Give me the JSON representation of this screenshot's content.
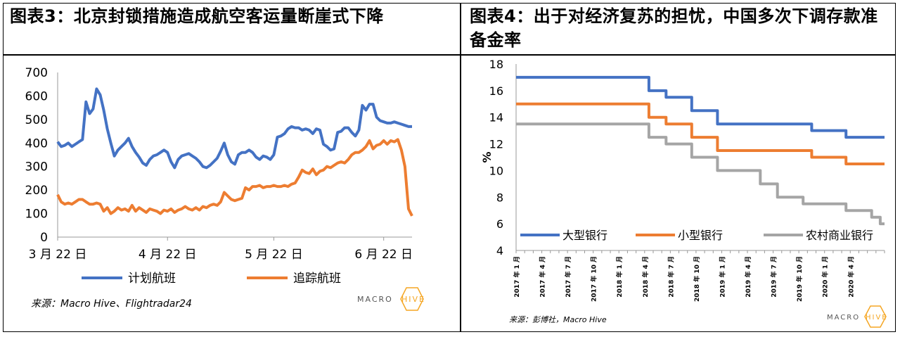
{
  "panel_left": {
    "title": "图表3：北京封锁措施造成航空客运量断崖式下降",
    "source": "来源：Macro Hive、Flightradar24",
    "logo": {
      "text_left": "MACRO",
      "text_right": "HIVE",
      "accent": "#f5a623"
    }
  },
  "panel_right": {
    "title": "图表4：出于对经济复苏的担忧，中国多次下调存款准备金率",
    "source": "来源：彭博社，Macro Hive",
    "logo": {
      "text_left": "MACRO",
      "text_right": "HIVE",
      "accent": "#f5a623"
    }
  },
  "chart_data": [
    {
      "type": "line",
      "title": "",
      "xlabel": "",
      "ylabel": "",
      "x_ticks": [
        "3 月 22 日",
        "4 月 22 日",
        "5 月 22 日",
        "6 月 22 日"
      ],
      "ylim": [
        0,
        700
      ],
      "y_ticks": [
        0,
        100,
        200,
        300,
        400,
        500,
        600,
        700
      ],
      "legend_position": "bottom",
      "x_count": 101,
      "series": [
        {
          "name": "计划航班",
          "color": "#4472c4",
          "values": [
            405,
            385,
            390,
            400,
            385,
            395,
            405,
            415,
            575,
            525,
            545,
            630,
            605,
            540,
            460,
            400,
            345,
            370,
            385,
            400,
            420,
            385,
            360,
            340,
            315,
            305,
            330,
            345,
            350,
            360,
            370,
            360,
            320,
            295,
            330,
            345,
            350,
            355,
            345,
            335,
            320,
            300,
            295,
            305,
            320,
            335,
            365,
            400,
            350,
            320,
            310,
            350,
            360,
            360,
            370,
            360,
            340,
            330,
            345,
            340,
            330,
            350,
            425,
            430,
            440,
            460,
            470,
            465,
            465,
            455,
            460,
            455,
            440,
            460,
            455,
            395,
            385,
            370,
            375,
            445,
            450,
            465,
            465,
            445,
            430,
            455,
            560,
            540,
            565,
            565,
            510,
            495,
            490,
            485,
            485,
            490,
            485,
            480,
            475,
            470,
            470
          ]
        },
        {
          "name": "追踪航班",
          "color": "#ed7d31",
          "values": [
            180,
            150,
            140,
            145,
            140,
            150,
            160,
            160,
            150,
            140,
            140,
            145,
            140,
            110,
            125,
            100,
            110,
            125,
            115,
            120,
            110,
            135,
            110,
            125,
            115,
            105,
            120,
            115,
            110,
            100,
            115,
            110,
            120,
            105,
            115,
            120,
            130,
            120,
            115,
            125,
            115,
            130,
            125,
            135,
            140,
            135,
            150,
            190,
            175,
            160,
            155,
            160,
            165,
            210,
            200,
            215,
            215,
            220,
            210,
            215,
            215,
            220,
            215,
            215,
            220,
            215,
            225,
            230,
            255,
            285,
            275,
            270,
            290,
            265,
            280,
            285,
            300,
            295,
            305,
            315,
            320,
            315,
            330,
            350,
            360,
            360,
            370,
            385,
            410,
            375,
            390,
            395,
            410,
            395,
            410,
            405,
            415,
            370,
            300,
            120,
            90
          ]
        }
      ]
    },
    {
      "type": "line",
      "title": "",
      "xlabel": "",
      "ylabel": "%",
      "ylim": [
        4,
        18
      ],
      "y_ticks": [
        4,
        6,
        8,
        10,
        12,
        14,
        16,
        18
      ],
      "x_ticks": [
        "2017 年 1 月",
        "2017 年 4 月",
        "2017 年 7 月",
        "2017 年 10 月",
        "2018 年 1 月",
        "2018 年 4 月",
        "2018 年 7 月",
        "2018 年 10 月",
        "2019 年 1 月",
        "2019 年 4 月",
        "2019 年 7 月",
        "2019 年 10 月",
        "2020 年 1 月",
        "2020 年 4 月"
      ],
      "legend_position": "bottom",
      "series": [
        {
          "name": "大型银行",
          "color": "#4472c4",
          "steps": [
            [
              0,
              17
            ],
            [
              15.5,
              16
            ],
            [
              17.5,
              15.5
            ],
            [
              20.5,
              14.5
            ],
            [
              23.5,
              13.5
            ],
            [
              34.5,
              13
            ],
            [
              38.5,
              12.5
            ],
            [
              42.5,
              12.5
            ]
          ]
        },
        {
          "name": "小型银行",
          "color": "#ed7d31",
          "steps": [
            [
              0,
              15
            ],
            [
              15.5,
              14
            ],
            [
              17.5,
              13.5
            ],
            [
              20.5,
              12.5
            ],
            [
              23.5,
              11.5
            ],
            [
              34.5,
              11
            ],
            [
              38.5,
              10.5
            ],
            [
              42.5,
              10.5
            ]
          ]
        },
        {
          "name": "农村商业银行",
          "color": "#a5a5a5",
          "steps": [
            [
              0,
              13.5
            ],
            [
              15.5,
              12.5
            ],
            [
              17.5,
              12
            ],
            [
              20.5,
              11
            ],
            [
              23.5,
              10
            ],
            [
              28.5,
              9
            ],
            [
              30.5,
              8
            ],
            [
              33.5,
              7.5
            ],
            [
              38.5,
              7
            ],
            [
              41.5,
              6.5
            ],
            [
              42.5,
              6
            ]
          ]
        }
      ]
    }
  ]
}
